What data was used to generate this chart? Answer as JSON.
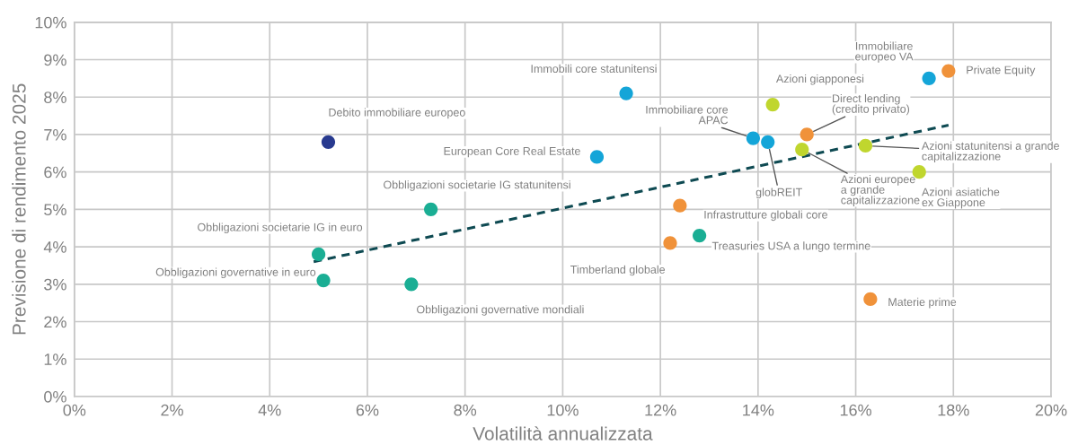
{
  "chart_data": {
    "type": "scatter",
    "xlabel": "Volatilità annualizzata",
    "ylabel": "Previsione di rendimento 2025",
    "xlim": [
      0,
      20
    ],
    "ylim": [
      0,
      10
    ],
    "xticks": [
      {
        "value": 0,
        "label": "0%"
      },
      {
        "value": 2,
        "label": "2%"
      },
      {
        "value": 4,
        "label": "4%"
      },
      {
        "value": 6,
        "label": "6%"
      },
      {
        "value": 8,
        "label": "8%"
      },
      {
        "value": 10,
        "label": "10%"
      },
      {
        "value": 12,
        "label": "12%"
      },
      {
        "value": 14,
        "label": "14%"
      },
      {
        "value": 16,
        "label": "16%"
      },
      {
        "value": 18,
        "label": "18%"
      },
      {
        "value": 20,
        "label": "20%"
      }
    ],
    "yticks": [
      {
        "value": 0,
        "label": "0%"
      },
      {
        "value": 1,
        "label": "1%"
      },
      {
        "value": 2,
        "label": "2%"
      },
      {
        "value": 3,
        "label": "3%"
      },
      {
        "value": 4,
        "label": "4%"
      },
      {
        "value": 5,
        "label": "5%"
      },
      {
        "value": 6,
        "label": "6%"
      },
      {
        "value": 7,
        "label": "7%"
      },
      {
        "value": 8,
        "label": "8%"
      },
      {
        "value": 9,
        "label": "9%"
      },
      {
        "value": 10,
        "label": "10%"
      }
    ],
    "grid": true,
    "marker": "circle",
    "series": [
      {
        "type": "line",
        "color": "#0e4a52",
        "line_style": "dashed",
        "marker": "none",
        "x": [
          4.9,
          17.9
        ],
        "values": [
          3.6,
          7.25
        ]
      },
      {
        "color": "#283a8f",
        "x": [
          5.2
        ],
        "values": [
          6.8
        ]
      },
      {
        "color": "#1aae94",
        "x": [
          7.3,
          5.0,
          5.1,
          6.9,
          12.8
        ],
        "values": [
          5.0,
          3.8,
          3.1,
          3.0,
          4.3
        ]
      },
      {
        "color": "#14a5d8",
        "x": [
          11.3,
          10.7,
          13.9,
          14.2,
          17.5
        ],
        "values": [
          8.1,
          6.4,
          6.9,
          6.8,
          8.5
        ]
      },
      {
        "color": "#f0923a",
        "x": [
          15.0,
          17.9,
          12.4,
          12.2,
          16.3
        ],
        "values": [
          7.0,
          8.7,
          5.1,
          4.1,
          2.6
        ]
      },
      {
        "color": "#c0d62e",
        "x": [
          14.3,
          14.9,
          16.2,
          17.3
        ],
        "values": [
          7.8,
          6.6,
          6.7,
          6.0
        ]
      }
    ],
    "annotations": [
      {
        "text": "Debito immobiliare europeo",
        "x": 5.2,
        "y": 6.8
      },
      {
        "text": "Obbligazioni societarie IG statunitensi",
        "x": 7.3,
        "y": 5.0
      },
      {
        "text": "Obbligazioni societarie IG in euro",
        "x": 5.0,
        "y": 3.8
      },
      {
        "text": "Obbligazioni governative in euro",
        "x": 5.1,
        "y": 3.1
      },
      {
        "text": "Obbligazioni governative mondiali",
        "x": 6.9,
        "y": 3.0
      },
      {
        "text": "Immobili core statunitensi",
        "x": 11.3,
        "y": 8.1
      },
      {
        "text": "European Core Real Estate",
        "x": 10.7,
        "y": 6.4
      },
      {
        "text": "Immobiliare core\nAPAC",
        "x": 13.9,
        "y": 6.9
      },
      {
        "text": "globREIT",
        "x": 14.2,
        "y": 6.8
      },
      {
        "text": "Azioni giapponesi",
        "x": 14.3,
        "y": 7.8
      },
      {
        "text": "Direct lending\n(credito privato)",
        "x": 15.0,
        "y": 7.0
      },
      {
        "text": "Azioni europee\na grande\ncapitalizzazione",
        "x": 14.9,
        "y": 6.6
      },
      {
        "text": "Azioni statunitensi a grande\ncapitalizzazione",
        "x": 16.2,
        "y": 6.7
      },
      {
        "text": "Azioni asiatiche\nex Giappone",
        "x": 17.3,
        "y": 6.0
      },
      {
        "text": "Immobiliare\neuropeo VA",
        "x": 17.5,
        "y": 8.5
      },
      {
        "text": "Private Equity",
        "x": 17.9,
        "y": 8.7
      },
      {
        "text": "Infrastrutture globali core",
        "x": 12.4,
        "y": 5.1
      },
      {
        "text": "Timberland globale",
        "x": 12.2,
        "y": 4.1
      },
      {
        "text": "Treasuries USA a lungo termine",
        "x": 12.8,
        "y": 4.3
      },
      {
        "text": "Materie prime",
        "x": 16.3,
        "y": 2.6
      }
    ]
  }
}
